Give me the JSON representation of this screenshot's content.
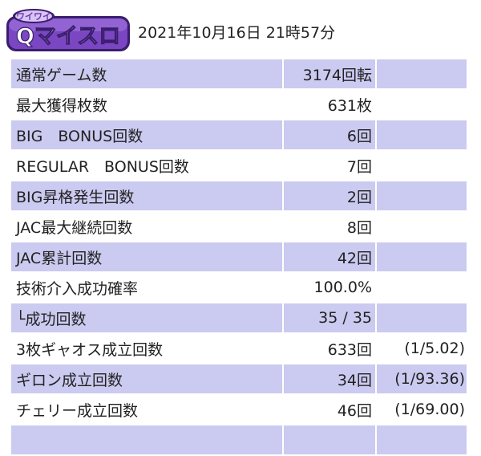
{
  "header": {
    "logo_text": "Qマイスロ",
    "logo_sub": "ワイワイ",
    "timestamp": "2021年10月16日 21時57分"
  },
  "colors": {
    "row_highlight": "#cbcaf0",
    "logo_purple": "#6a3aa8",
    "logo_border": "#3b1d6e"
  },
  "rows": [
    {
      "label": "通常ゲーム数",
      "value": "3174回転",
      "ratio": ""
    },
    {
      "label": "最大獲得枚数",
      "value": "631枚",
      "ratio": ""
    },
    {
      "label": "BIG　BONUS回数",
      "value": "6回",
      "ratio": ""
    },
    {
      "label": "REGULAR　BONUS回数",
      "value": "7回",
      "ratio": ""
    },
    {
      "label": "BIG昇格発生回数",
      "value": "2回",
      "ratio": ""
    },
    {
      "label": "JAC最大継続回数",
      "value": "8回",
      "ratio": ""
    },
    {
      "label": "JAC累計回数",
      "value": "42回",
      "ratio": ""
    },
    {
      "label": "技術介入成功確率",
      "value": "100.0%",
      "ratio": ""
    },
    {
      "label": "└成功回数",
      "value": "35 / 35",
      "ratio": ""
    },
    {
      "label": "3枚ギャオス成立回数",
      "value": "633回",
      "ratio": "(1/5.02)"
    },
    {
      "label": "ギロン成立回数",
      "value": "34回",
      "ratio": "(1/93.36)"
    },
    {
      "label": "チェリー成立回数",
      "value": "46回",
      "ratio": "(1/69.00)"
    },
    {
      "label": "",
      "value": "",
      "ratio": ""
    }
  ]
}
